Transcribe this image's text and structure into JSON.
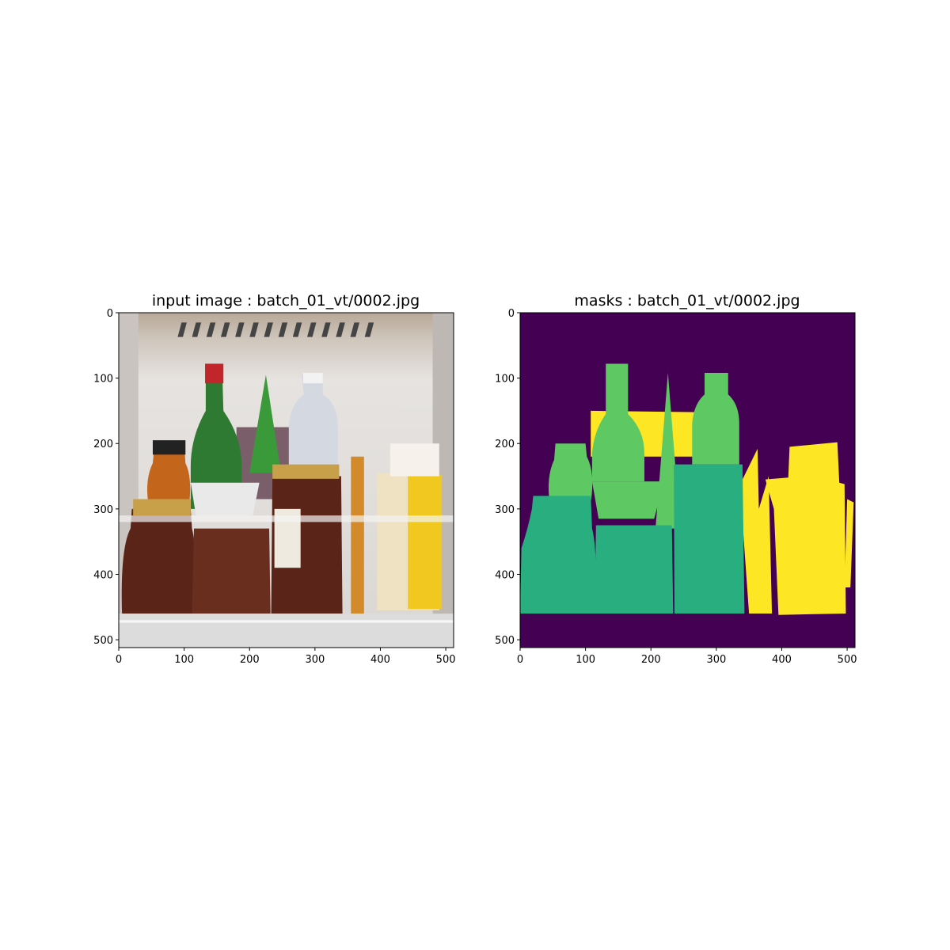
{
  "chart_data": [
    {
      "type": "image",
      "title": "input image : batch_01_vt/0002.jpg",
      "xlim": [
        0,
        512
      ],
      "ylim": [
        512,
        0
      ],
      "xticks": [
        0,
        100,
        200,
        300,
        400,
        500
      ],
      "yticks": [
        0,
        100,
        200,
        300,
        400,
        500
      ],
      "grid": false,
      "colors": {
        "fridge_wall": "#e6e3e0",
        "ceiling": "#b8a898",
        "green_bottle": "#2f7a33",
        "red_cap": "#c0262a",
        "clear_bottle": "#d4d8e0",
        "honey": "#c4651c",
        "jar_lid": "#c8a04a",
        "sauce": "#5a2418",
        "box": "#efe2c2",
        "yellow_pack": "#f0c820",
        "drawer": "#dcdcdc",
        "purple_card": "#7a5f6a"
      }
    },
    {
      "type": "image",
      "title": "masks : batch_01_vt/0002.jpg",
      "xlim": [
        0,
        512
      ],
      "ylim": [
        512,
        0
      ],
      "xticks": [
        0,
        100,
        200,
        300,
        400,
        500
      ],
      "yticks": [
        0,
        100,
        200,
        300,
        400,
        500
      ],
      "grid": false,
      "colormap": "viridis",
      "colors": {
        "background": "#440154",
        "class_jar": "#29af7f",
        "class_bottle": "#5ec962",
        "class_package": "#fde725"
      }
    }
  ]
}
